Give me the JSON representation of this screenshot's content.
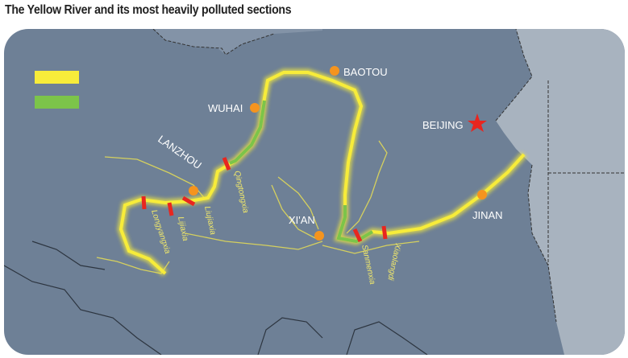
{
  "title": "The Yellow River and its most heavily polluted sections",
  "colors": {
    "water": "#6e8096",
    "land_light": "#a8b3bf",
    "river": "#f7ec3a",
    "polluted": "#7cc44a",
    "dam": "#e8261f",
    "city": "#f5941e",
    "capital": "#e8261f"
  },
  "legend": [
    {
      "color": "#f7ec3a"
    },
    {
      "color": "#7cc44a"
    }
  ],
  "cities": [
    {
      "name": "BAOTOU"
    },
    {
      "name": "WUHAI"
    },
    {
      "name": "BEIJING",
      "icon": "star-icon"
    },
    {
      "name": "LANZHOU"
    },
    {
      "name": "XI'AN"
    },
    {
      "name": "JINAN"
    }
  ],
  "dams": [
    "Qingtongxia",
    "Liujiaxia",
    "Lijiaxia",
    "Longyangxia",
    "Sanmenxia",
    "Xiaolangdi"
  ]
}
